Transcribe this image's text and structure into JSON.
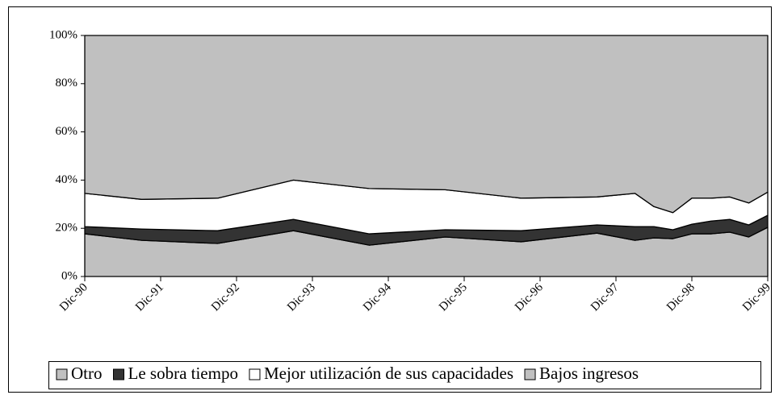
{
  "chart_data": {
    "type": "stacked-area",
    "x": [
      0,
      9,
      21,
      33,
      45,
      57,
      69,
      81,
      87,
      90,
      93,
      96,
      99,
      102,
      105,
      108
    ],
    "xlim": [
      0,
      108
    ],
    "xticks": [
      {
        "value": 0,
        "label": "Dic-90"
      },
      {
        "value": 12,
        "label": "Dic-91"
      },
      {
        "value": 24,
        "label": "Dic-92"
      },
      {
        "value": 36,
        "label": "Dic-93"
      },
      {
        "value": 48,
        "label": "Dic-94"
      },
      {
        "value": 60,
        "label": "Dic-95"
      },
      {
        "value": 72,
        "label": "Dic-96"
      },
      {
        "value": 84,
        "label": "Dic-97"
      },
      {
        "value": 96,
        "label": "Dic-98"
      },
      {
        "value": 108,
        "label": "Dic-99"
      }
    ],
    "ylim": [
      0,
      100
    ],
    "yticks": [
      {
        "value": 0,
        "label": "0%"
      },
      {
        "value": 20,
        "label": "20%"
      },
      {
        "value": 40,
        "label": "40%"
      },
      {
        "value": 60,
        "label": "60%"
      },
      {
        "value": 80,
        "label": "80%"
      },
      {
        "value": 100,
        "label": "100%"
      }
    ],
    "legend": "bottom",
    "series": [
      {
        "name": "Otro",
        "color": "#c0c0c0",
        "values": [
          17.7,
          15,
          13.7,
          19,
          13,
          16.4,
          14.4,
          18,
          15,
          16,
          15.7,
          17.7,
          17.7,
          18.4,
          16.4,
          20.4
        ]
      },
      {
        "name": "Le sobra tiempo",
        "color": "#333333",
        "values": [
          3,
          4.7,
          5.3,
          4.7,
          4.7,
          3,
          4.6,
          3.4,
          5.7,
          4.7,
          3.7,
          4,
          5.3,
          5.3,
          5,
          5
        ]
      },
      {
        "name": "Mejor utilización de sus capacidades",
        "color": "#ffffff",
        "values": [
          13.8,
          12.3,
          13.5,
          16.3,
          18.8,
          16.6,
          13.5,
          11.6,
          13.8,
          8.3,
          7.1,
          10.8,
          9.5,
          9.3,
          9.1,
          9.6
        ]
      },
      {
        "name": "Bajos ingresos",
        "color": "#c0c0c0",
        "values": [
          65.5,
          68,
          67.5,
          60,
          63.5,
          64,
          67.5,
          67,
          65.5,
          71,
          73.5,
          67.5,
          67.5,
          67,
          69.5,
          65
        ]
      }
    ]
  }
}
